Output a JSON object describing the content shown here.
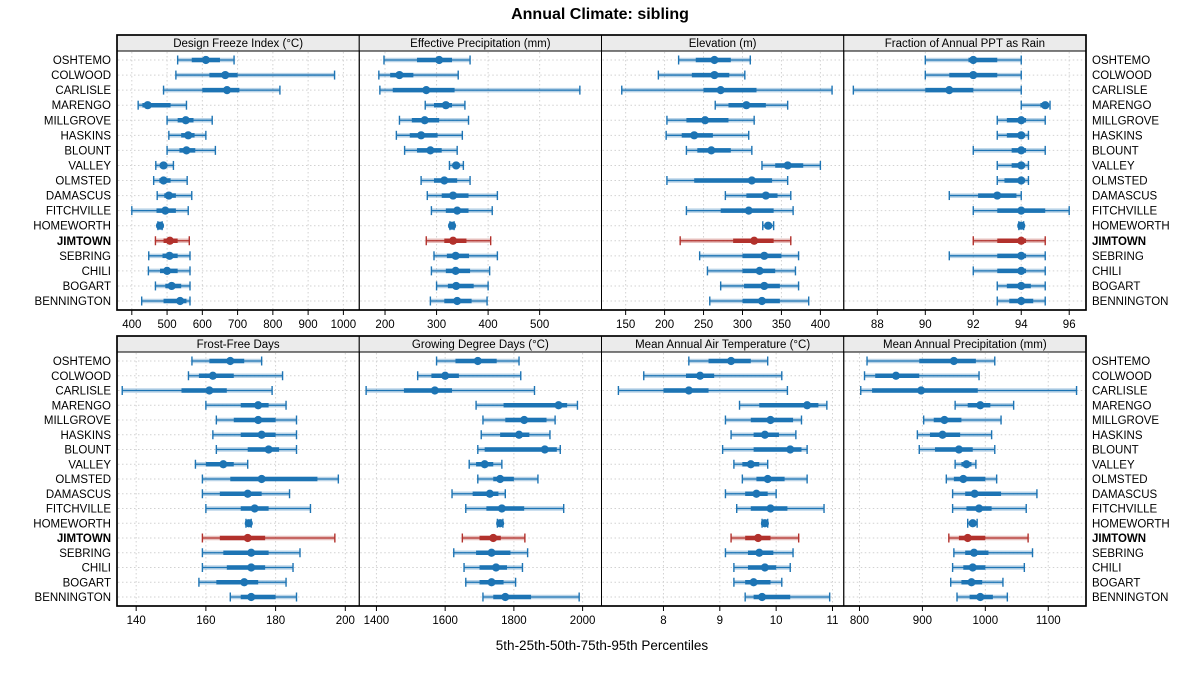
{
  "title": "Annual Climate: sibling",
  "caption": "5th-25th-50th-75th-95th Percentiles",
  "colors": {
    "series": "#1d74b4",
    "highlight": "#b2312c",
    "strip_bg": "#ebebeb",
    "grid": "#d2d2d2",
    "border": "#000000"
  },
  "highlight_series": "JIMTOWN",
  "series": [
    "OSHTEMO",
    "COLWOOD",
    "CARLISLE",
    "MARENGO",
    "MILLGROVE",
    "HASKINS",
    "BLOUNT",
    "VALLEY",
    "OLMSTED",
    "DAMASCUS",
    "FITCHVILLE",
    "HOMEWORTH",
    "JIMTOWN",
    "SEBRING",
    "CHILI",
    "BOGART",
    "BENNINGTON"
  ],
  "chart_data": {
    "type": "dotplot-percentiles",
    "percentile_labels": [
      "5th",
      "25th",
      "50th",
      "75th",
      "95th"
    ],
    "rows": [
      "OSHTEMO",
      "COLWOOD",
      "CARLISLE",
      "MARENGO",
      "MILLGROVE",
      "HASKINS",
      "BLOUNT",
      "VALLEY",
      "OLMSTED",
      "DAMASCUS",
      "FITCHVILLE",
      "HOMEWORTH",
      "JIMTOWN",
      "SEBRING",
      "CHILI",
      "BOGART",
      "BENNINGTON"
    ],
    "panels": [
      {
        "title": "Design Freeze Index (°C)",
        "xlim": [
          358,
          1045
        ],
        "ticks": [
          400,
          500,
          600,
          700,
          800,
          900,
          1000
        ],
        "values": [
          [
            530,
            570,
            610,
            650,
            690
          ],
          [
            525,
            620,
            665,
            700,
            975
          ],
          [
            490,
            600,
            670,
            705,
            820
          ],
          [
            418,
            430,
            445,
            510,
            555
          ],
          [
            500,
            530,
            553,
            575,
            628
          ],
          [
            505,
            540,
            560,
            578,
            610
          ],
          [
            500,
            535,
            555,
            580,
            637
          ],
          [
            468,
            480,
            490,
            500,
            518
          ],
          [
            462,
            478,
            490,
            510,
            557
          ],
          [
            472,
            492,
            505,
            525,
            570
          ],
          [
            400,
            470,
            495,
            525,
            560
          ],
          [
            474,
            478,
            480,
            482,
            486
          ],
          [
            467,
            490,
            508,
            530,
            563
          ],
          [
            448,
            487,
            507,
            530,
            565
          ],
          [
            447,
            480,
            500,
            530,
            565
          ],
          [
            467,
            495,
            513,
            540,
            565
          ],
          [
            428,
            490,
            537,
            555,
            565
          ]
        ]
      },
      {
        "title": "Effective Precipitation (mm)",
        "xlim": [
          150,
          620
        ],
        "ticks": [
          200,
          300,
          400,
          500
        ],
        "values": [
          [
            198,
            262,
            305,
            330,
            365
          ],
          [
            188,
            210,
            228,
            255,
            342
          ],
          [
            190,
            215,
            280,
            335,
            578
          ],
          [
            278,
            295,
            318,
            330,
            355
          ],
          [
            228,
            252,
            277,
            305,
            362
          ],
          [
            222,
            248,
            270,
            302,
            350
          ],
          [
            238,
            262,
            288,
            310,
            340
          ],
          [
            325,
            332,
            338,
            344,
            352
          ],
          [
            270,
            295,
            315,
            340,
            365
          ],
          [
            282,
            310,
            332,
            362,
            418
          ],
          [
            290,
            318,
            340,
            362,
            408
          ],
          [
            326,
            328,
            330,
            332,
            334
          ],
          [
            280,
            315,
            332,
            358,
            405
          ],
          [
            295,
            320,
            337,
            363,
            418
          ],
          [
            290,
            318,
            337,
            365,
            403
          ],
          [
            300,
            322,
            338,
            372,
            400
          ],
          [
            288,
            315,
            340,
            368,
            398
          ]
        ]
      },
      {
        "title": "Elevation (m)",
        "xlim": [
          119,
          430
        ],
        "ticks": [
          150,
          200,
          250,
          300,
          350,
          400
        ],
        "values": [
          [
            218,
            240,
            264,
            285,
            310
          ],
          [
            192,
            235,
            264,
            283,
            303
          ],
          [
            145,
            250,
            272,
            318,
            415
          ],
          [
            265,
            282,
            305,
            330,
            358
          ],
          [
            203,
            228,
            252,
            282,
            315
          ],
          [
            202,
            222,
            238,
            262,
            308
          ],
          [
            228,
            242,
            260,
            285,
            312
          ],
          [
            325,
            342,
            358,
            378,
            400
          ],
          [
            203,
            238,
            312,
            338,
            358
          ],
          [
            278,
            305,
            330,
            345,
            362
          ],
          [
            228,
            272,
            308,
            340,
            365
          ],
          [
            326,
            330,
            333,
            336,
            340
          ],
          [
            220,
            288,
            315,
            340,
            362
          ],
          [
            245,
            300,
            328,
            350,
            372
          ],
          [
            255,
            300,
            322,
            342,
            368
          ],
          [
            272,
            302,
            328,
            348,
            372
          ],
          [
            258,
            300,
            325,
            348,
            385
          ]
        ]
      },
      {
        "title": "Fraction of Annual PPT as Rain",
        "xlim": [
          86.6,
          96.7
        ],
        "ticks": [
          88,
          90,
          92,
          94,
          96
        ],
        "values": [
          [
            90,
            91.8,
            92,
            93,
            94
          ],
          [
            90,
            91,
            92,
            93,
            94
          ],
          [
            87,
            90,
            91,
            92,
            94
          ],
          [
            94,
            94.8,
            95,
            95,
            95.2
          ],
          [
            93,
            93.4,
            94,
            94.2,
            95
          ],
          [
            93,
            93.4,
            94,
            94.1,
            94.3
          ],
          [
            92,
            93.6,
            94,
            94.2,
            95
          ],
          [
            93,
            93.6,
            94,
            94.1,
            94.3
          ],
          [
            93,
            93.3,
            94,
            94.1,
            94.3
          ],
          [
            91,
            92.2,
            93,
            93.8,
            94
          ],
          [
            92,
            93,
            94,
            95,
            96
          ],
          [
            93.9,
            94,
            94,
            94,
            94.1
          ],
          [
            92,
            93,
            94,
            94.2,
            95
          ],
          [
            91,
            93,
            94,
            94.2,
            95
          ],
          [
            92,
            93,
            94,
            94.2,
            95
          ],
          [
            93,
            93.4,
            94,
            94.4,
            95
          ],
          [
            93,
            93.5,
            94,
            94.5,
            95
          ]
        ]
      },
      {
        "title": "Frost-Free Days",
        "xlim": [
          134.5,
          204
        ],
        "ticks": [
          140,
          160,
          180,
          200
        ],
        "values": [
          [
            156,
            161,
            167,
            171,
            176
          ],
          [
            155,
            158,
            162,
            168,
            182
          ],
          [
            136,
            153,
            161,
            166,
            179
          ],
          [
            160,
            170,
            175,
            178,
            183
          ],
          [
            163,
            168,
            175,
            180,
            186
          ],
          [
            162,
            170,
            176,
            180,
            186
          ],
          [
            163,
            172,
            178,
            181,
            186
          ],
          [
            157,
            160,
            165,
            168,
            172
          ],
          [
            159,
            167,
            176,
            192,
            198
          ],
          [
            159,
            164,
            172,
            176,
            184
          ],
          [
            160,
            170,
            174,
            178,
            190
          ],
          [
            171.5,
            172,
            172.3,
            172.6,
            173
          ],
          [
            159,
            164,
            172,
            177,
            197
          ],
          [
            159,
            165,
            173,
            178,
            187
          ],
          [
            159,
            166,
            173,
            177,
            185
          ],
          [
            158,
            163,
            171,
            175,
            183
          ],
          [
            167,
            170,
            173,
            180,
            186
          ]
        ]
      },
      {
        "title": "Growing Degree Days (°C)",
        "xlim": [
          1350,
          2055
        ],
        "ticks": [
          1400,
          1600,
          1800,
          2000
        ],
        "values": [
          [
            1575,
            1630,
            1695,
            1750,
            1815
          ],
          [
            1520,
            1560,
            1600,
            1640,
            1820
          ],
          [
            1370,
            1480,
            1570,
            1620,
            1860
          ],
          [
            1690,
            1770,
            1930,
            1955,
            1985
          ],
          [
            1710,
            1775,
            1830,
            1895,
            1920
          ],
          [
            1705,
            1760,
            1815,
            1845,
            1905
          ],
          [
            1695,
            1715,
            1890,
            1925,
            1935
          ],
          [
            1670,
            1690,
            1715,
            1740,
            1765
          ],
          [
            1695,
            1740,
            1760,
            1800,
            1870
          ],
          [
            1620,
            1680,
            1730,
            1755,
            1775
          ],
          [
            1660,
            1720,
            1765,
            1830,
            1945
          ],
          [
            1752,
            1756,
            1760,
            1764,
            1768
          ],
          [
            1650,
            1700,
            1740,
            1762,
            1832
          ],
          [
            1625,
            1690,
            1735,
            1790,
            1840
          ],
          [
            1655,
            1700,
            1748,
            1780,
            1825
          ],
          [
            1660,
            1700,
            1735,
            1770,
            1805
          ],
          [
            1710,
            1740,
            1775,
            1850,
            1990
          ]
        ]
      },
      {
        "title": "Mean Annual Air Temperature (°C)",
        "xlim": [
          6.9,
          11.2
        ],
        "ticks": [
          8,
          9,
          10,
          11
        ],
        "values": [
          [
            8.45,
            8.8,
            9.2,
            9.55,
            9.85
          ],
          [
            7.65,
            8.4,
            8.65,
            8.9,
            10.1
          ],
          [
            7.2,
            8.0,
            8.45,
            8.8,
            10.2
          ],
          [
            9.35,
            9.7,
            10.55,
            10.75,
            10.9
          ],
          [
            9.1,
            9.55,
            9.9,
            10.3,
            10.45
          ],
          [
            9.2,
            9.6,
            9.8,
            10.05,
            10.35
          ],
          [
            9.05,
            9.6,
            10.25,
            10.45,
            10.55
          ],
          [
            9.25,
            9.4,
            9.55,
            9.7,
            9.85
          ],
          [
            9.4,
            9.65,
            9.85,
            10.15,
            10.55
          ],
          [
            9.1,
            9.45,
            9.65,
            9.85,
            10.0
          ],
          [
            9.3,
            9.55,
            9.9,
            10.2,
            10.85
          ],
          [
            9.75,
            9.78,
            9.8,
            9.82,
            9.85
          ],
          [
            9.2,
            9.45,
            9.68,
            9.9,
            10.4
          ],
          [
            9.1,
            9.5,
            9.7,
            9.95,
            10.3
          ],
          [
            9.25,
            9.5,
            9.8,
            10.0,
            10.25
          ],
          [
            9.25,
            9.45,
            9.6,
            9.9,
            10.1
          ],
          [
            9.45,
            9.6,
            9.75,
            10.25,
            10.95
          ]
        ]
      },
      {
        "title": "Mean Annual Precipitation (mm)",
        "xlim": [
          775,
          1160
        ],
        "ticks": [
          800,
          900,
          1000,
          1100
        ],
        "values": [
          [
            812,
            895,
            950,
            985,
            1015
          ],
          [
            808,
            825,
            858,
            895,
            990
          ],
          [
            802,
            820,
            898,
            988,
            1145
          ],
          [
            952,
            972,
            992,
            1008,
            1045
          ],
          [
            902,
            918,
            935,
            962,
            1025
          ],
          [
            892,
            912,
            932,
            960,
            1010
          ],
          [
            895,
            920,
            958,
            980,
            1015
          ],
          [
            952,
            962,
            970,
            978,
            985
          ],
          [
            938,
            950,
            965,
            1000,
            1018
          ],
          [
            948,
            968,
            983,
            1025,
            1082
          ],
          [
            948,
            970,
            990,
            1010,
            1065
          ],
          [
            972,
            976,
            980,
            983,
            987
          ],
          [
            942,
            958,
            972,
            1000,
            1068
          ],
          [
            950,
            968,
            982,
            1005,
            1075
          ],
          [
            948,
            965,
            980,
            1000,
            1062
          ],
          [
            945,
            962,
            978,
            995,
            1028
          ],
          [
            955,
            975,
            992,
            1012,
            1035
          ]
        ]
      }
    ]
  }
}
